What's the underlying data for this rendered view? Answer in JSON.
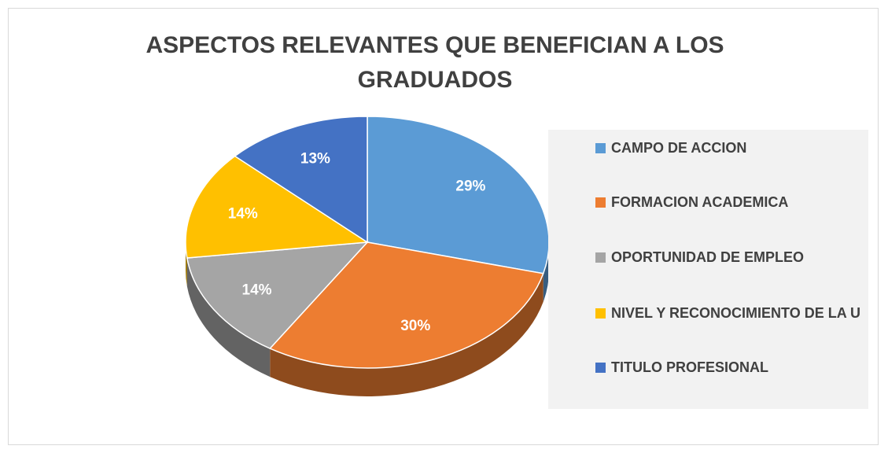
{
  "chart_data": {
    "type": "pie",
    "title": "ASPECTOS RELEVANTES QUE BENEFICIAN A LOS GRADUADOS",
    "categories": [
      "CAMPO DE ACCION",
      "FORMACION ACADEMICA",
      "OPORTUNIDAD DE EMPLEO",
      "NIVEL Y RECONOCIMIENTO DE LA U",
      "TITULO PROFESIONAL"
    ],
    "values": [
      29,
      30,
      14,
      14,
      13
    ],
    "value_labels": [
      "29%",
      "30%",
      "14%",
      "14%",
      "13%"
    ],
    "colors": [
      "#5b9bd5",
      "#ed7d31",
      "#a5a5a5",
      "#ffc000",
      "#4472c4"
    ],
    "legend": "right"
  }
}
